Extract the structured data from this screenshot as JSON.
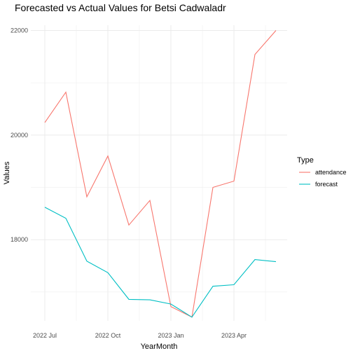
{
  "chart_data": {
    "type": "line",
    "title": "Forecasted vs Actual Values for Betsi Cadwaladr",
    "xlabel": "YearMonth",
    "ylabel": "Values",
    "x": [
      "2022-07",
      "2022-08",
      "2022-09",
      "2022-10",
      "2022-11",
      "2022-12",
      "2023-01",
      "2023-02",
      "2023-03",
      "2023-04",
      "2023-05",
      "2023-06"
    ],
    "xticks": [
      {
        "x": "2022-07",
        "label": "2022 Jul"
      },
      {
        "x": "2022-10",
        "label": "2022 Oct"
      },
      {
        "x": "2023-01",
        "label": "2023 Jan"
      },
      {
        "x": "2023-04",
        "label": "2023 Apr"
      }
    ],
    "yticks": [
      {
        "y": 18000,
        "label": "18000"
      },
      {
        "y": 20000,
        "label": "20000"
      },
      {
        "y": 22000,
        "label": "22000"
      }
    ],
    "ylim": [
      16450,
      22100
    ],
    "grid": true,
    "legend": {
      "title": "Type",
      "placement": "right"
    },
    "series": [
      {
        "name": "attendance",
        "color": "#F8766D",
        "values": [
          20240,
          20820,
          18820,
          19600,
          18280,
          18750,
          16720,
          16520,
          19000,
          19120,
          21540,
          22000
        ]
      },
      {
        "name": "forecast",
        "color": "#00BFC4",
        "values": [
          18620,
          18410,
          17590,
          17370,
          16860,
          16850,
          16770,
          16520,
          17110,
          17140,
          17620,
          17580
        ]
      }
    ]
  }
}
